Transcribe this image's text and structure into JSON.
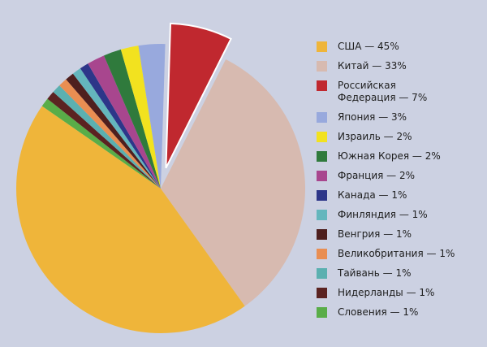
{
  "chart_data": {
    "type": "pie",
    "exploded": "Российская Федерация — 7%",
    "legend_position": "right",
    "slices": [
      {
        "label": "США — 45%",
        "value": 45,
        "color": "#efb53a"
      },
      {
        "label": "Китай — 33%",
        "value": 33,
        "color": "#d7bab0"
      },
      {
        "label": "Российская Федерация — 7%",
        "value": 7,
        "color": "#c0282f",
        "legend_lines": [
          "Российская",
          "Федерация — 7%"
        ]
      },
      {
        "label": "Япония — 3%",
        "value": 3,
        "color": "#98a9dd"
      },
      {
        "label": "Израиль — 2%",
        "value": 2,
        "color": "#f2e21f"
      },
      {
        "label": "Южная Корея — 2%",
        "value": 2,
        "color": "#2f7a3c"
      },
      {
        "label": "Франция — 2%",
        "value": 2,
        "color": "#a8468e"
      },
      {
        "label": "Канада — 1%",
        "value": 1,
        "color": "#2d3689"
      },
      {
        "label": "Финляндия — 1%",
        "value": 1,
        "color": "#64b6bd"
      },
      {
        "label": "Венгрия — 1%",
        "value": 1,
        "color": "#4e1f1e"
      },
      {
        "label": "Великобритания — 1%",
        "value": 1,
        "color": "#e98e52"
      },
      {
        "label": "Тайвань — 1%",
        "value": 1,
        "color": "#5bb0b0"
      },
      {
        "label": "Нидерланды — 1%",
        "value": 1,
        "color": "#5b2321"
      },
      {
        "label": "Словения — 1%",
        "value": 1,
        "color": "#59ad48"
      }
    ]
  }
}
